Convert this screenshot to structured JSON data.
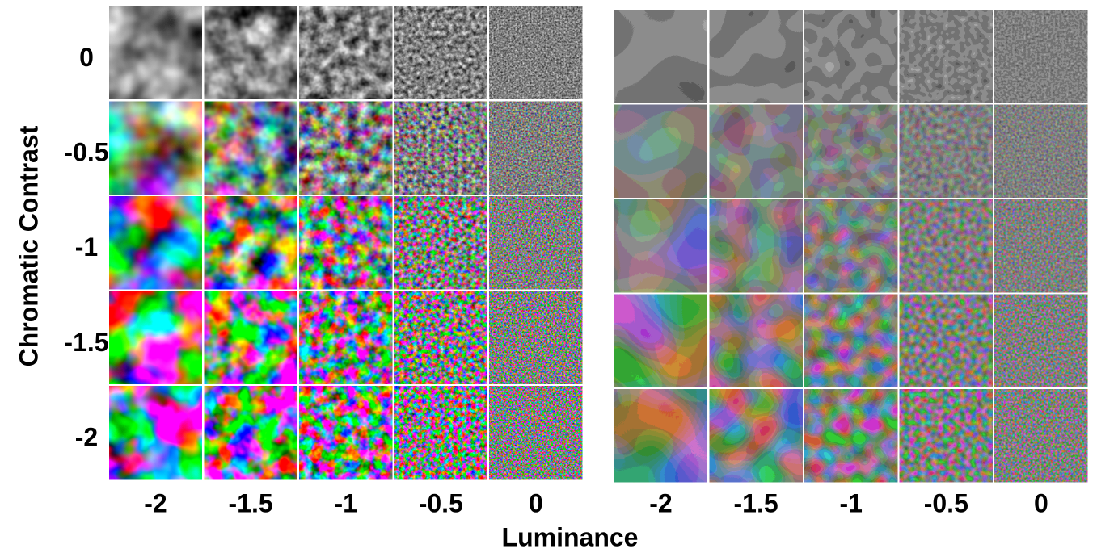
{
  "y_axis": {
    "title": "Chromatic Contrast",
    "labels": [
      "0",
      "-0.5",
      "-1",
      "-1.5",
      "-2"
    ]
  },
  "x_axis": {
    "title": "Luminance"
  },
  "panels": [
    {
      "x_labels": [
        "-2",
        "-1.5",
        "-1",
        "-0.5",
        "0"
      ]
    },
    {
      "x_labels": [
        "-2",
        "-1.5",
        "-1",
        "-0.5",
        "0"
      ]
    }
  ]
}
